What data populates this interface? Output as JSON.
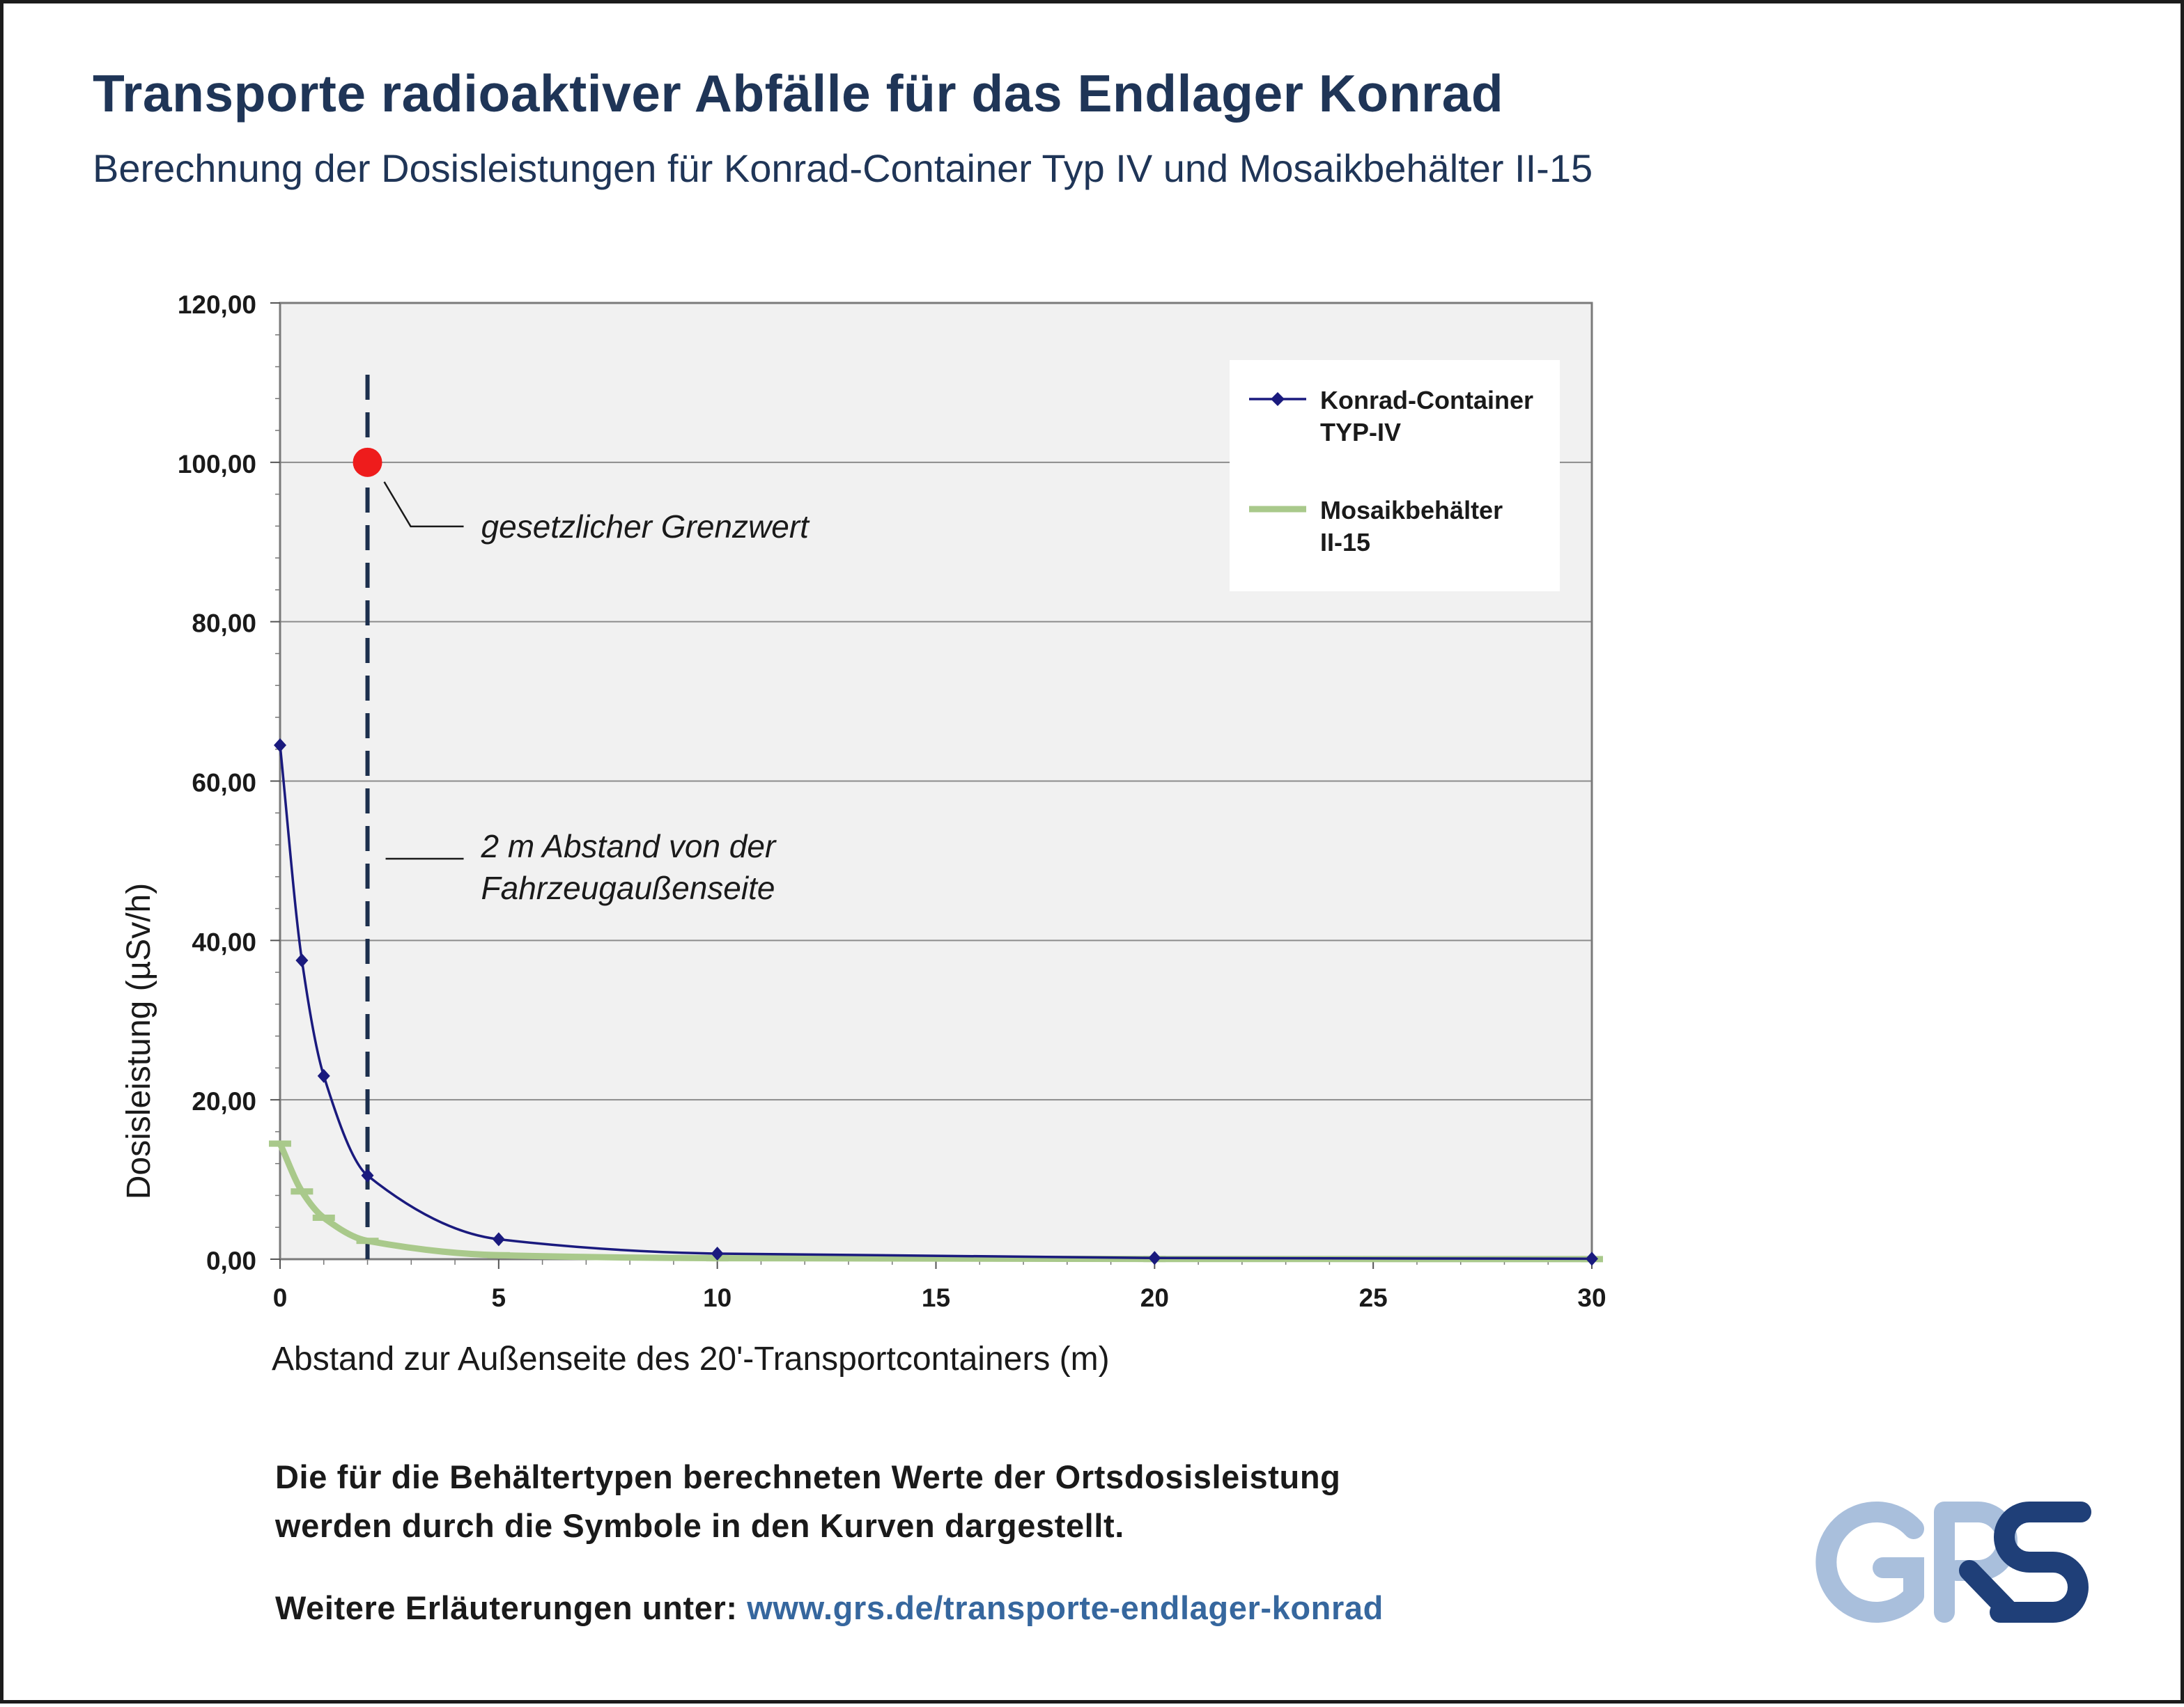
{
  "header": {
    "title": "Transporte radioaktiver Abfälle für das Endlager Konrad",
    "subtitle": "Berechnung der Dosisleistungen für Konrad-Container Typ IV und Mosaikbehälter II-15"
  },
  "chart_data": {
    "type": "line",
    "xlabel": "Abstand zur Außenseite des 20'-Transportcontainers (m)",
    "ylabel": "Dosisleistung (µSv/h)",
    "xlim": [
      0,
      30
    ],
    "ylim": [
      0,
      120
    ],
    "x_ticks": [
      "0",
      "5",
      "10",
      "15",
      "20",
      "25",
      "30"
    ],
    "y_ticks": [
      "0,00",
      "20,00",
      "40,00",
      "60,00",
      "80,00",
      "100,00",
      "120,00"
    ],
    "grid": "horizontal",
    "legend_position": "top-right",
    "series": [
      {
        "name": "Konrad-Container TYP-IV",
        "legend_lines": [
          "Konrad-Container",
          "TYP-IV"
        ],
        "color": "#1a1a7e",
        "marker": "diamond",
        "x": [
          0,
          0.5,
          1,
          2,
          5,
          10,
          20,
          30
        ],
        "y": [
          64.5,
          37.5,
          23,
          10.5,
          2.5,
          0.7,
          0.15,
          0.05
        ]
      },
      {
        "name": "Mosaikbehälter II-15",
        "legend_lines": [
          "Mosaikbehälter",
          "II-15"
        ],
        "color": "#a9c98b",
        "marker": "dash",
        "x": [
          0,
          0.5,
          1,
          2,
          5,
          10,
          20,
          30
        ],
        "y": [
          14.5,
          8.5,
          5.2,
          2.3,
          0.5,
          0.12,
          0.03,
          0.01
        ]
      }
    ],
    "reference": {
      "distance_x": 2,
      "limit_y": 100,
      "limit_label": "gesetzlicher Grenzwert",
      "distance_label_lines": [
        "2 m Abstand von der",
        "Fahrzeugaußenseite"
      ],
      "limit_color": "#ee1c1c",
      "line_color": "#1c2f4d"
    }
  },
  "footer": {
    "note_line1": "Die für die Behältertypen berechneten Werte der Ortsdosisleistung",
    "note_line2": "werden durch die Symbole in den Kurven dargestellt.",
    "more_prefix": "Weitere Erläuterungen unter: ",
    "more_link": "www.grs.de/transporte-endlager-konrad"
  },
  "logo": {
    "text": "GRS",
    "color_light": "#a9bfdc",
    "color_dark": "#1f3f78"
  }
}
